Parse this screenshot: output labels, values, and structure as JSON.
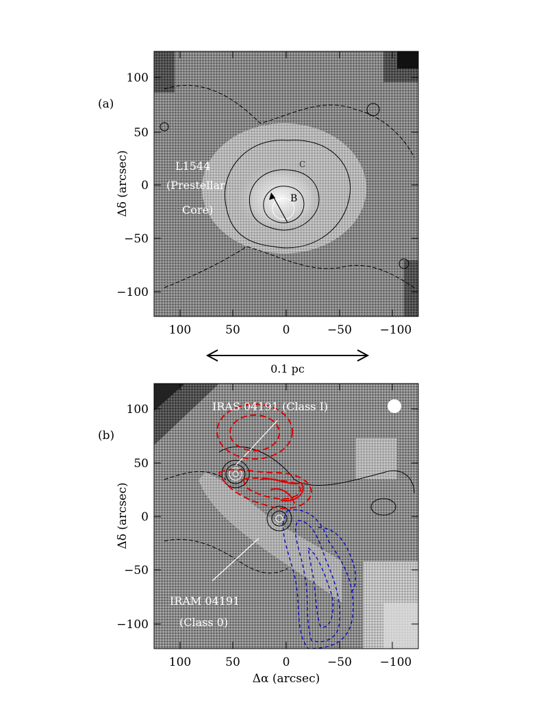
{
  "figure": {
    "panels": [
      {
        "tag": "(a)",
        "labels": {
          "source_line1": "L1544",
          "source_line2": "(Prestellar",
          "source_line3": "Core)"
        },
        "markers": {
          "b": "B",
          "c": "C"
        },
        "y_tick_labels": [
          "100",
          "50",
          "0",
          "−50",
          "−100"
        ],
        "x_tick_labels": [
          "100",
          "50",
          "0",
          "−50",
          "−100"
        ],
        "ylabel": "Δδ (arcsec)"
      },
      {
        "tag": "(b)",
        "labels": {
          "source_top": "IRAS 04191 (Class I)",
          "source_bottom_line1": "IRAM 04191",
          "source_bottom_line2": "(Class 0)"
        },
        "y_tick_labels": [
          "100",
          "50",
          "0",
          "−50",
          "−100"
        ],
        "x_tick_labels": [
          "100",
          "50",
          "0",
          "−50",
          "−100"
        ],
        "ylabel": "Δδ (arcsec)",
        "xlabel": "Δα (arcsec)"
      }
    ],
    "scale_bar": {
      "label": "0.1 pc"
    },
    "colors": {
      "red_lobe": "#e00000",
      "blue_lobe": "#1010c0",
      "map_background": "#808080"
    }
  }
}
